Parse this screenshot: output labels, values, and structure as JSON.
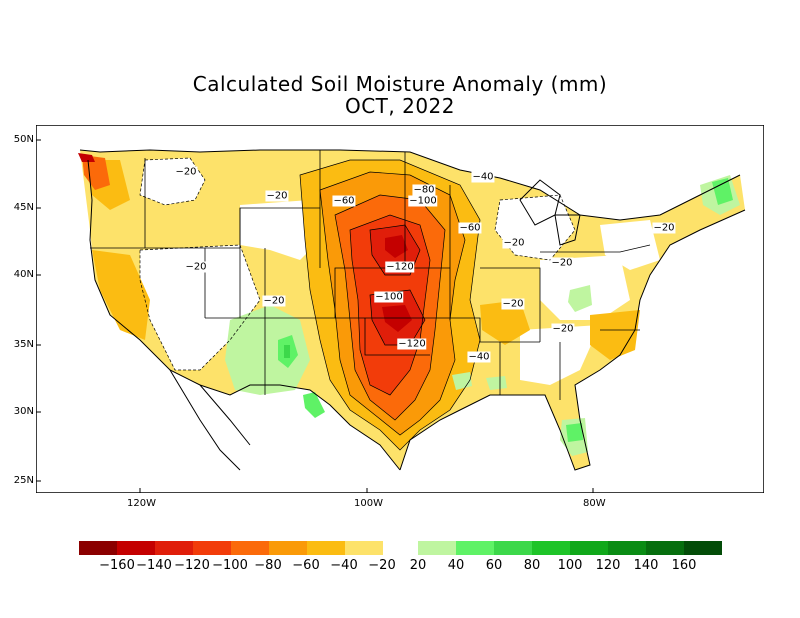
{
  "title": "Calculated Soil Moisture Anomaly (mm)",
  "subtitle": "OCT, 2022",
  "lat_labels": [
    "50N",
    "45N",
    "40N",
    "35N",
    "30N",
    "25N"
  ],
  "lon_labels": [
    "120W",
    "100W",
    "80W"
  ],
  "colorbar": {
    "negative_colors": [
      "#8b0000",
      "#c40000",
      "#e01e0a",
      "#f23c0a",
      "#fb6a0a",
      "#fa9a08",
      "#fbbc12",
      "#fde26a"
    ],
    "positive_colors": [
      "#bff5a0",
      "#5ff266",
      "#3cd84a",
      "#1ec428",
      "#10a81a",
      "#0a8c14",
      "#066e0e",
      "#034c08"
    ],
    "tick_labels": [
      "-160",
      "-140",
      "-120",
      "-100",
      "-80",
      "-60",
      "-40",
      "-20",
      "20",
      "40",
      "60",
      "80",
      "100",
      "120",
      "140",
      "160"
    ]
  },
  "contour_labels": [
    "-20",
    "-20",
    "-20",
    "-20",
    "-20",
    "-20",
    "-20",
    "-20",
    "-20",
    "-40",
    "-40",
    "-60",
    "-60",
    "-80",
    "-100",
    "-100",
    "-120",
    "-120"
  ]
}
